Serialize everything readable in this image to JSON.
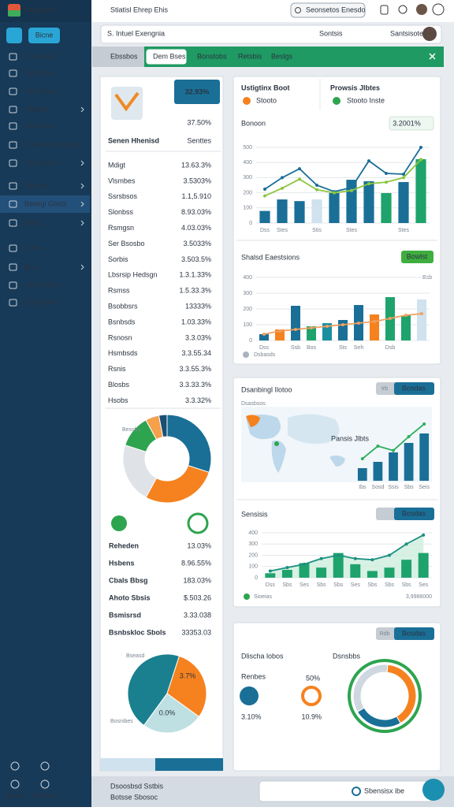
{
  "topbar": {
    "logo": "Negibori",
    "breadcrumb": "Stiatisl Ehrep Ehis",
    "search": "Seonsetos Enesdo"
  },
  "sidebar": {
    "button": "Bicne",
    "items": [
      "Somencial",
      "Detsbors",
      "Samstiluts",
      "Retiplis",
      "Detsnees",
      "Somien Brodpleb",
      "Somsdiors",
      "Deborin",
      "Batiegi Gbids",
      "Beats",
      "Beltes",
      "Bies",
      "Smrfisdtets",
      "Dorsdiboro"
    ],
    "bottom": [
      "Bdiiga",
      "Wohtses"
    ]
  },
  "toolbar": {
    "title": "S. Intuel Exengnia",
    "action": "Sontsis",
    "user": "Santsisote"
  },
  "tabs": [
    "Ebssbos",
    "Dem Bses",
    "Bonstobs",
    "Retsbis",
    "Beslgs"
  ],
  "summary": {
    "badge": "32.93%",
    "big": "37.50%",
    "heading": "Senen Hhenisd",
    "subheading": "Senttes",
    "rows": [
      {
        "name": "Mdigt",
        "value": "13.63.3%",
        "color": "#9aa3ad"
      },
      {
        "name": "Vlsmbes",
        "value": "3.5303%",
        "color": "#22a05a"
      },
      {
        "name": "Ssrsbsos",
        "value": "1.1,5.910",
        "color": "#22a05a"
      },
      {
        "name": "Slonbss",
        "value": "8.93.03%",
        "color": "#22a05a"
      },
      {
        "name": "Rsmgsn",
        "value": "4.03.03%",
        "color": "#9aa3ad"
      },
      {
        "name": "Ser Bsosbo",
        "value": "3.5033%",
        "color": "#f0901e"
      },
      {
        "name": "Sorbis",
        "value": "3.503.5%",
        "color": "#f0901e"
      },
      {
        "name": "Lbsrsip Hedsgn",
        "value": "1.3.1.33%",
        "color": "#3c9bd0"
      },
      {
        "name": "Rsmss",
        "value": "1.5.33.3%",
        "color": "#3c9bd0"
      },
      {
        "name": "Bsobbsrs",
        "value": "13333%",
        "color": "#22a05a"
      },
      {
        "name": "Bsnbsds",
        "value": "1.03.33%",
        "color": "#9aa3ad"
      },
      {
        "name": "Rsnosn",
        "value": "3.3.03%",
        "color": "#f0901e"
      },
      {
        "name": "Hsmbsds",
        "value": "3.3.55.34",
        "color": "#3c9bd0"
      },
      {
        "name": "Rsnis",
        "value": "3.3.55.3%",
        "color": "#9aa3ad"
      },
      {
        "name": "Blosbs",
        "value": "3.3.33.3%",
        "color": "#9aa3ad"
      },
      {
        "name": "Hsobs",
        "value": "3.3.32%",
        "color": "#9aa3ad"
      }
    ],
    "donut": {
      "label": "Bessbs",
      "values": [
        30,
        28,
        22,
        12,
        5,
        3
      ],
      "colors": [
        "#1a6f97",
        "#f5821f",
        "#dfe3e7",
        "#2ea44f",
        "#f5a04a",
        "#1b4f72"
      ]
    },
    "rows2": [
      {
        "name": "Reheden",
        "value": "13.03%",
        "color": "#9aa3ad"
      },
      {
        "name": "Hsbens",
        "value": "8.96.55%",
        "color": "#22a05a"
      },
      {
        "name": "Cbals Bbsg",
        "value": "183.03%",
        "color": "#f0901e"
      },
      {
        "name": "Ahoto Sbsis",
        "value": "$.503.26",
        "color": "#f0901e"
      },
      {
        "name": "Bsmisrsd",
        "value": "3.33.038",
        "color": "#22a05a"
      },
      {
        "name": "Bsnbskloc Sbols",
        "value": "33353.03",
        "color": "#9aa3ad"
      }
    ],
    "pie": {
      "values": [
        45,
        30,
        25
      ],
      "colors": [
        "#1a7f8f",
        "#f5821f",
        "#bfe0e3"
      ],
      "top_label": "Bseasd",
      "bottom_label": "Bosnibes",
      "slice_label": "3.7%",
      "center_label": "0.0%"
    }
  },
  "card1": {
    "title_a": "Ustigtinx Boot",
    "sub_a": "Stooto",
    "title_b": "Prowsis Jlbtes",
    "sub_b": "Stooto Inste",
    "section": "Bonoon",
    "badge": "3.2001%",
    "chart": {
      "ylim": [
        0,
        500
      ],
      "yticks": [
        0,
        100,
        200,
        300,
        400,
        500
      ],
      "categories": [
        "Dss",
        "Stes",
        null,
        "Stis",
        null,
        "Stes",
        null,
        null,
        "Stes",
        null
      ],
      "bars": [
        80,
        156,
        145,
        156,
        198,
        286,
        276,
        198,
        271,
        422
      ],
      "bar_colors": [
        "#1a6f97",
        "#1a6f97",
        "#1a6f97",
        "#cfe2ee",
        "#1a6f97",
        "#1a6f97",
        "#1a6f97",
        "#1fa36c",
        "#1a6f97",
        "#1fa36c"
      ],
      "lines": [
        {
          "color": "#1a6f97",
          "values": [
            224,
            300,
            359,
            250,
            208,
            234,
            411,
            328,
            323,
            500
          ]
        },
        {
          "color": "#8cc63f",
          "values": [
            180,
            230,
            290,
            220,
            200,
            215,
            260,
            270,
            300,
            420
          ]
        }
      ]
    },
    "section2": "Shalsd Eaestsions",
    "badge2": "Bowlst",
    "tag2": "Bsb",
    "legend2": "Dsbasds",
    "chart2": {
      "ylim": [
        0,
        400
      ],
      "yticks": [
        0,
        100,
        200,
        300,
        400
      ],
      "categories": [
        "Dss",
        null,
        "Ssb",
        "Bos",
        null,
        "Sts",
        "Seh",
        null,
        "Dsb",
        null,
        null
      ],
      "bars": [
        40,
        70,
        220,
        90,
        110,
        130,
        225,
        165,
        275,
        160,
        260
      ],
      "bar_colors": [
        "#1a6f97",
        "#f5821f",
        "#1a6f97",
        "#1fa36c",
        "#1a8fa0",
        "#1a6f97",
        "#1a6f97",
        "#f5821f",
        "#1fa36c",
        "#1fa36c",
        "#cfe2ee"
      ],
      "lines": [
        {
          "color": "#f0a060",
          "values": [
            40,
            60,
            70,
            80,
            90,
            100,
            110,
            120,
            140,
            160,
            170
          ]
        }
      ]
    }
  },
  "card3": {
    "title": "Dsanbingl Ilotoo",
    "tab_a": "Irb",
    "tab_b": "Bosdas",
    "map_label": "Dsasbsos",
    "map_tag": "Pansis Jlbts",
    "chart": {
      "ylim": [
        0,
        100
      ],
      "categories": [
        "Ibs",
        "Sosd",
        "Ssis",
        "Sbs",
        "Seis"
      ],
      "bars": [
        20,
        30,
        45,
        60,
        75
      ],
      "color": "#1a6f97",
      "lines": [
        {
          "color": "#2fae5f",
          "values": [
            35,
            55,
            48,
            70,
            90
          ]
        }
      ]
    },
    "section": "Sensisis",
    "tab_c": "Bosdas",
    "legend": "Sioeias",
    "legend_value": "3,9988000",
    "chart2": {
      "ylim": [
        0,
        400
      ],
      "yticks": [
        0,
        100,
        200,
        300,
        400
      ],
      "categories": [
        "Dss",
        "Sbs",
        "Ses",
        "Sbs",
        "Sbs",
        "Ses",
        "Sbs",
        "Sbs",
        "Sbs",
        "Ses"
      ],
      "bars": [
        40,
        70,
        130,
        90,
        220,
        120,
        60,
        90,
        160,
        220
      ],
      "color": "#1fa36c",
      "lines": [
        {
          "color": "#1a8f80",
          "fill": "#cdeedd",
          "values": [
            60,
            90,
            120,
            170,
            200,
            170,
            160,
            200,
            300,
            380
          ]
        }
      ]
    }
  },
  "card4": {
    "tab_a": "Rdb",
    "tab_b": "Bosdas",
    "title": "Dlischa lobos",
    "tag": "Dsnsbbs",
    "left_label": "Renbes",
    "right_top": "50%",
    "left_value": "3.10%",
    "right_value": "10.9%",
    "donut": {
      "values": [
        40,
        25,
        35
      ],
      "colors": [
        "#f5821f",
        "#1a6f97",
        "#cfd8e0"
      ]
    }
  },
  "footer": {
    "line1": "Dsoosbsd Sstbis",
    "line2": "Botsse Sbosoc",
    "button": "Sbensisx ibe"
  }
}
